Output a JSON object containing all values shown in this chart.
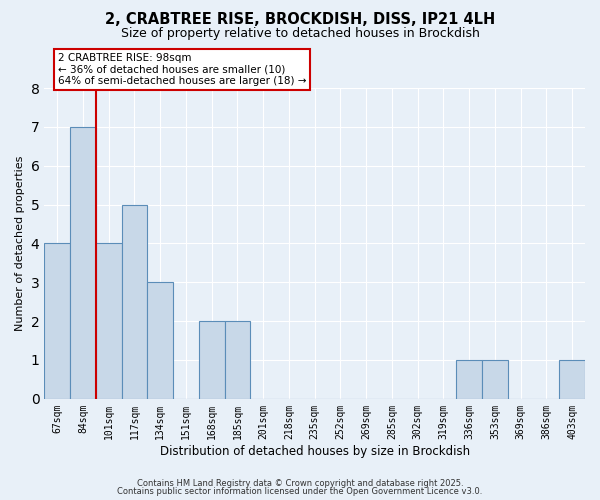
{
  "title_line1": "2, CRABTREE RISE, BROCKDISH, DISS, IP21 4LH",
  "title_line2": "Size of property relative to detached houses in Brockdish",
  "xlabel": "Distribution of detached houses by size in Brockdish",
  "ylabel": "Number of detached properties",
  "bar_labels": [
    "67sqm",
    "84sqm",
    "101sqm",
    "117sqm",
    "134sqm",
    "151sqm",
    "168sqm",
    "185sqm",
    "201sqm",
    "218sqm",
    "235sqm",
    "252sqm",
    "269sqm",
    "285sqm",
    "302sqm",
    "319sqm",
    "336sqm",
    "353sqm",
    "369sqm",
    "386sqm",
    "403sqm"
  ],
  "bar_values": [
    4,
    7,
    4,
    5,
    3,
    0,
    2,
    2,
    0,
    0,
    0,
    0,
    0,
    0,
    0,
    0,
    1,
    1,
    0,
    0,
    1
  ],
  "bar_color": "#c8d8e8",
  "bar_edge_color": "#5b8db8",
  "bg_color": "#e8f0f8",
  "grid_color": "#ffffff",
  "vline_x": 1.5,
  "vline_color": "#cc0000",
  "annotation_text": "2 CRABTREE RISE: 98sqm\n← 36% of detached houses are smaller (10)\n64% of semi-detached houses are larger (18) →",
  "annotation_box_edge": "#cc0000",
  "ylim": [
    0,
    8
  ],
  "yticks": [
    0,
    1,
    2,
    3,
    4,
    5,
    6,
    7,
    8
  ],
  "footer_line1": "Contains HM Land Registry data © Crown copyright and database right 2025.",
  "footer_line2": "Contains public sector information licensed under the Open Government Licence v3.0."
}
